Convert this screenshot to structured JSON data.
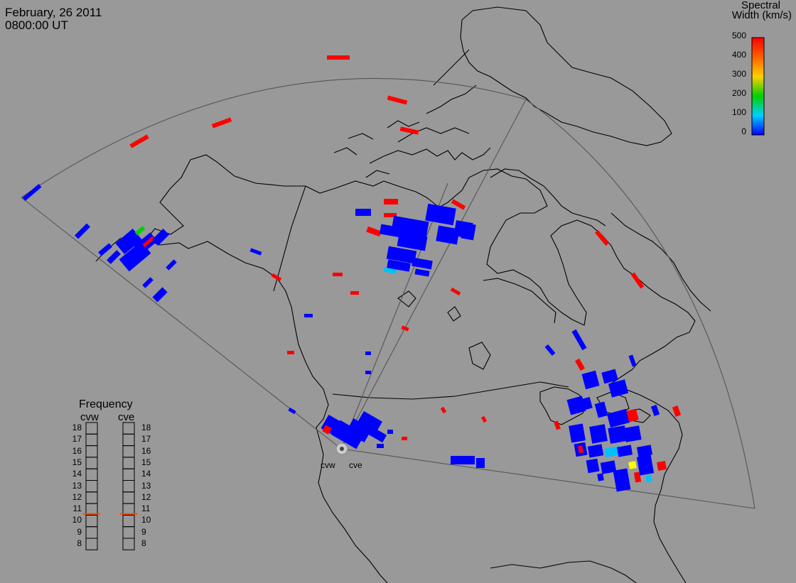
{
  "header": {
    "date": "February, 26 2011",
    "time": "0800:00 UT"
  },
  "colorbar": {
    "title_line1": "Spectral",
    "title_line2": "Width (km/s)",
    "labels": [
      "500",
      "400",
      "300",
      "200",
      "100",
      "0"
    ],
    "colors": [
      "#ff0000",
      "#ffa500",
      "#ffff00",
      "#00ff00",
      "#00ffff",
      "#0000ff"
    ]
  },
  "frequency_panel": {
    "title": "Frequency",
    "radars": [
      {
        "name": "cvw",
        "scale": [
          "18",
          "17",
          "16",
          "15",
          "14",
          "13",
          "12",
          "11",
          "10",
          "9",
          "8"
        ],
        "value_mhz": 10.6
      },
      {
        "name": "cve",
        "scale": [
          "18",
          "17",
          "16",
          "15",
          "14",
          "13",
          "12",
          "11",
          "10",
          "9",
          "8"
        ],
        "value_mhz": 10.6
      }
    ],
    "indicator_color": "#ff4500"
  },
  "stations": [
    {
      "name": "cvw"
    },
    {
      "name": "cve"
    }
  ],
  "colors": {
    "background": "#999999",
    "coast": "#000000",
    "fov": "#555555",
    "low_width": "#0000ff",
    "high_width": "#ff0000"
  }
}
